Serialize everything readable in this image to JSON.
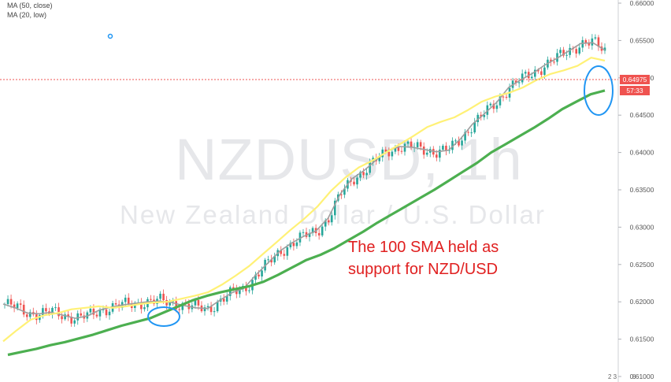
{
  "chart_data": {
    "type": "candlestick",
    "title": "NZDUSD, 1h",
    "subtitle": "New Zealand Dollar / U.S. Dollar",
    "indicators": [
      "MA (50, close)",
      "MA (20, low)"
    ],
    "y_axis": {
      "position": "right",
      "ticks": [
        "0.66000",
        "0.65500",
        "0.65000",
        "0.64500",
        "0.64000",
        "0.63500",
        "0.63000",
        "0.62500",
        "0.62000",
        "0.61500",
        "0.61000"
      ],
      "range": [
        0.61,
        0.66
      ]
    },
    "series": [
      {
        "color": "#9e9e9e",
        "values": [
          0.6197,
          0.6192,
          0.6185,
          0.6184,
          0.6186,
          0.6182,
          0.6178,
          0.6181,
          0.6189,
          0.6193,
          0.6196,
          0.6198,
          0.62,
          0.6201,
          0.6199,
          0.6195,
          0.6192,
          0.6191,
          0.6202,
          0.6212,
          0.6218,
          0.6236,
          0.6252,
          0.6268,
          0.6279,
          0.6288,
          0.6295,
          0.6312,
          0.6344,
          0.6365,
          0.6376,
          0.639,
          0.6403,
          0.6408,
          0.6407,
          0.6404,
          0.6401,
          0.6403,
          0.6418,
          0.6438,
          0.6452,
          0.6467,
          0.6487,
          0.6497,
          0.6506,
          0.6517,
          0.6526,
          0.6536,
          0.6546,
          0.6547,
          0.6537
        ]
      },
      {
        "color": "#fff176",
        "values": [
          0.6147,
          0.6162,
          0.6176,
          0.6182,
          0.6185,
          0.619,
          0.6192,
          0.6194,
          0.6192,
          0.6194,
          0.6197,
          0.6199,
          0.62,
          0.6204,
          0.6208,
          0.6213,
          0.6223,
          0.6235,
          0.6248,
          0.6264,
          0.628,
          0.6296,
          0.6311,
          0.6328,
          0.6349,
          0.6366,
          0.638,
          0.6389,
          0.64,
          0.6411,
          0.6422,
          0.6434,
          0.6441,
          0.6447,
          0.6457,
          0.6468,
          0.6475,
          0.648,
          0.6487,
          0.6497,
          0.6505,
          0.651,
          0.6516,
          0.6527,
          0.6523
        ]
      },
      {
        "color": "#4caf50",
        "values": [
          0.6129,
          0.6133,
          0.6137,
          0.6142,
          0.6146,
          0.6151,
          0.6156,
          0.6162,
          0.6168,
          0.6173,
          0.6178,
          0.6186,
          0.6194,
          0.6202,
          0.6208,
          0.6213,
          0.6217,
          0.6221,
          0.6227,
          0.6236,
          0.6246,
          0.6256,
          0.6263,
          0.6272,
          0.6283,
          0.6294,
          0.6306,
          0.6317,
          0.6328,
          0.6339,
          0.635,
          0.6362,
          0.6374,
          0.6386,
          0.64,
          0.6411,
          0.6422,
          0.6433,
          0.6445,
          0.6458,
          0.6468,
          0.6478,
          0.6483
        ]
      }
    ],
    "last_price": "0.64975",
    "countdown": "57:33",
    "annotation": "The 100 SMA held as support for NZD/USD"
  },
  "chart_ui": {
    "corner_right": "2 3",
    "corner_far": "8"
  }
}
